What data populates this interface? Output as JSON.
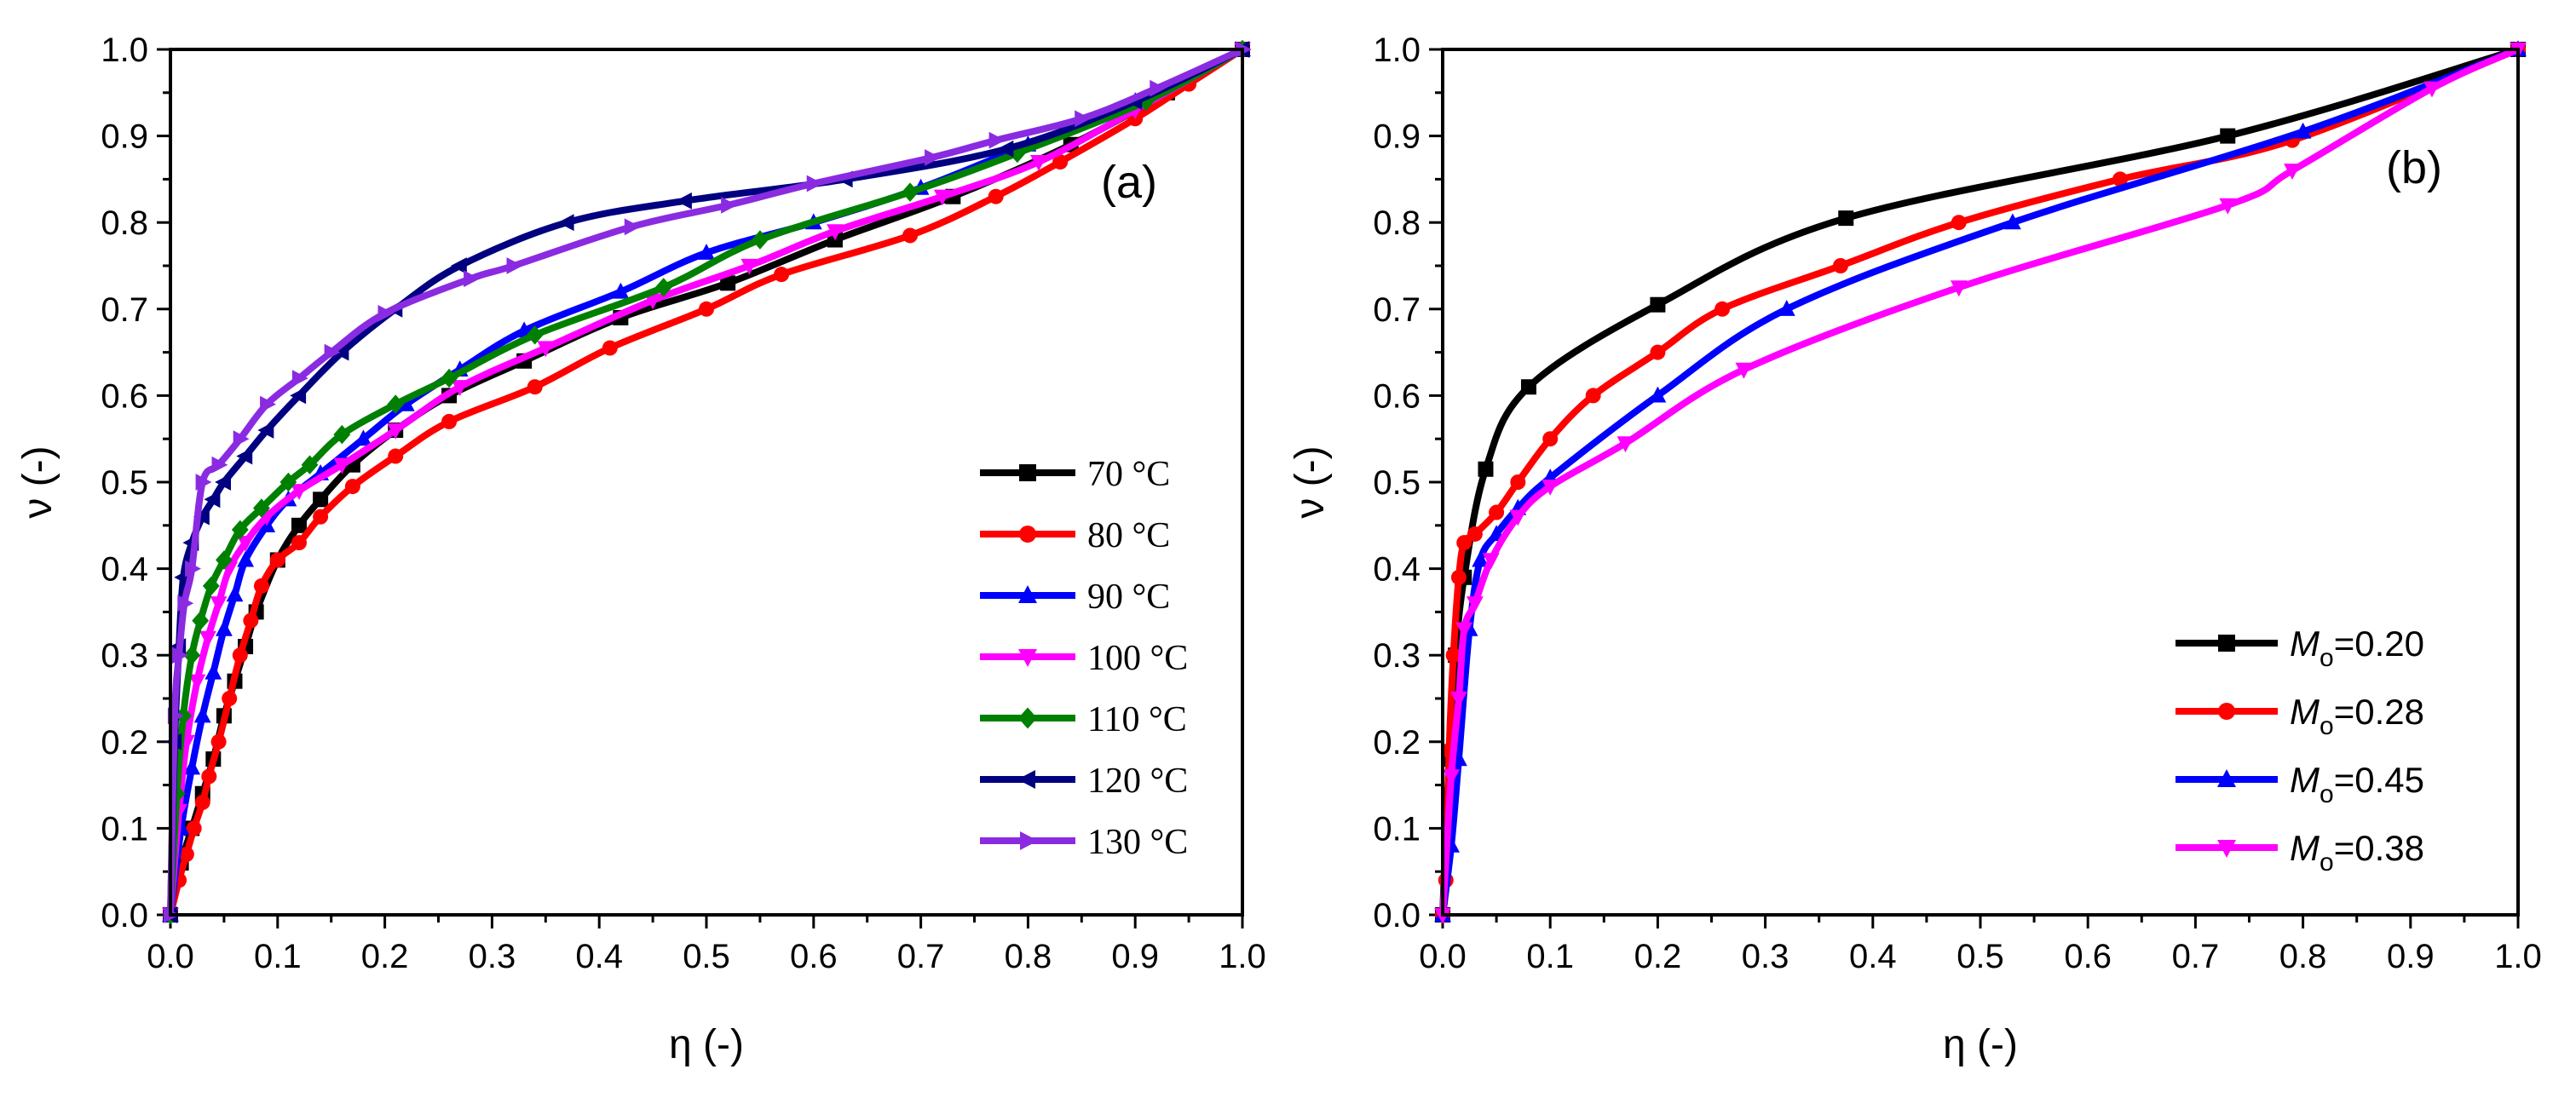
{
  "chart_data": [
    {
      "type": "line",
      "panel_label": "(a)",
      "xlabel": "η (-)",
      "ylabel": "ν (-)",
      "xlim": [
        0,
        1
      ],
      "ylim": [
        0,
        1
      ],
      "xticks": [
        "0.0",
        "0.1",
        "0.2",
        "0.3",
        "0.4",
        "0.5",
        "0.6",
        "0.7",
        "0.8",
        "0.9",
        "1.0"
      ],
      "yticks": [
        "0.0",
        "0.1",
        "0.2",
        "0.3",
        "0.4",
        "0.5",
        "0.6",
        "0.7",
        "0.8",
        "0.9",
        "1.0"
      ],
      "legend_position": "lower-right",
      "series": [
        {
          "name": "70 °C",
          "color": "#000000",
          "marker": "square",
          "x": [
            0,
            0.01,
            0.02,
            0.03,
            0.04,
            0.05,
            0.06,
            0.07,
            0.08,
            0.1,
            0.12,
            0.14,
            0.17,
            0.21,
            0.26,
            0.33,
            0.42,
            0.52,
            0.62,
            0.73,
            0.84,
            0.93,
            1.0
          ],
          "y": [
            0,
            0.06,
            0.1,
            0.14,
            0.18,
            0.23,
            0.27,
            0.31,
            0.35,
            0.41,
            0.45,
            0.48,
            0.52,
            0.56,
            0.6,
            0.64,
            0.69,
            0.73,
            0.78,
            0.83,
            0.89,
            0.95,
            1.0
          ]
        },
        {
          "name": "80 °C",
          "color": "#ff0000",
          "marker": "circle",
          "x": [
            0,
            0.008,
            0.015,
            0.022,
            0.03,
            0.036,
            0.045,
            0.055,
            0.065,
            0.075,
            0.085,
            0.1,
            0.12,
            0.14,
            0.17,
            0.21,
            0.26,
            0.34,
            0.41,
            0.5,
            0.57,
            0.69,
            0.77,
            0.83,
            0.9,
            0.95,
            1.0
          ],
          "y": [
            0,
            0.04,
            0.07,
            0.1,
            0.13,
            0.16,
            0.2,
            0.25,
            0.3,
            0.34,
            0.38,
            0.41,
            0.43,
            0.46,
            0.495,
            0.53,
            0.57,
            0.61,
            0.655,
            0.7,
            0.74,
            0.785,
            0.83,
            0.87,
            0.92,
            0.96,
            1.0
          ]
        },
        {
          "name": "90 °C",
          "color": "#0000ff",
          "marker": "triangle-up",
          "x": [
            0,
            0.01,
            0.02,
            0.03,
            0.04,
            0.05,
            0.06,
            0.07,
            0.09,
            0.11,
            0.14,
            0.18,
            0.22,
            0.27,
            0.33,
            0.42,
            0.5,
            0.6,
            0.7,
            0.8,
            0.9,
            1.0
          ],
          "y": [
            0,
            0.1,
            0.17,
            0.23,
            0.28,
            0.33,
            0.37,
            0.41,
            0.45,
            0.48,
            0.51,
            0.55,
            0.59,
            0.63,
            0.675,
            0.72,
            0.765,
            0.8,
            0.84,
            0.89,
            0.94,
            1.0
          ]
        },
        {
          "name": "100 °C",
          "color": "#ff00ff",
          "marker": "triangle-down",
          "x": [
            0,
            0.008,
            0.015,
            0.025,
            0.035,
            0.045,
            0.055,
            0.07,
            0.09,
            0.12,
            0.16,
            0.21,
            0.27,
            0.35,
            0.45,
            0.54,
            0.62,
            0.72,
            0.81,
            0.9,
            1.0
          ],
          "y": [
            0,
            0.12,
            0.2,
            0.27,
            0.32,
            0.36,
            0.4,
            0.43,
            0.46,
            0.49,
            0.52,
            0.56,
            0.61,
            0.655,
            0.71,
            0.75,
            0.79,
            0.83,
            0.87,
            0.93,
            1.0
          ]
        },
        {
          "name": "110 °C",
          "color": "#008000",
          "marker": "diamond",
          "x": [
            0,
            0.006,
            0.012,
            0.02,
            0.028,
            0.038,
            0.05,
            0.065,
            0.085,
            0.11,
            0.13,
            0.16,
            0.21,
            0.26,
            0.34,
            0.46,
            0.55,
            0.69,
            0.79,
            0.91,
            1.0
          ],
          "y": [
            0,
            0.14,
            0.23,
            0.3,
            0.34,
            0.38,
            0.41,
            0.445,
            0.47,
            0.5,
            0.52,
            0.555,
            0.59,
            0.62,
            0.67,
            0.725,
            0.78,
            0.835,
            0.88,
            0.94,
            1.0
          ]
        },
        {
          "name": "120 °C",
          "color": "#000080",
          "marker": "triangle-left",
          "x": [
            0,
            0.004,
            0.008,
            0.012,
            0.02,
            0.03,
            0.04,
            0.05,
            0.07,
            0.09,
            0.12,
            0.16,
            0.21,
            0.27,
            0.37,
            0.48,
            0.63,
            0.78,
            0.9,
            1.0
          ],
          "y": [
            0,
            0.2,
            0.31,
            0.39,
            0.43,
            0.46,
            0.48,
            0.5,
            0.53,
            0.56,
            0.6,
            0.65,
            0.7,
            0.75,
            0.8,
            0.825,
            0.85,
            0.885,
            0.94,
            1.0
          ]
        },
        {
          "name": "130 °C",
          "color": "#8a2be2",
          "marker": "triangle-right",
          "x": [
            0,
            0.004,
            0.008,
            0.013,
            0.02,
            0.03,
            0.045,
            0.065,
            0.09,
            0.12,
            0.15,
            0.2,
            0.28,
            0.32,
            0.43,
            0.52,
            0.6,
            0.71,
            0.77,
            0.85,
            0.92,
            1.0
          ],
          "y": [
            0,
            0.23,
            0.3,
            0.36,
            0.4,
            0.5,
            0.52,
            0.55,
            0.59,
            0.62,
            0.65,
            0.695,
            0.735,
            0.75,
            0.795,
            0.82,
            0.845,
            0.875,
            0.895,
            0.92,
            0.955,
            1.0
          ]
        }
      ]
    },
    {
      "type": "line",
      "panel_label": "(b)",
      "xlabel": "η (-)",
      "ylabel": "ν (-)",
      "xlim": [
        0,
        1
      ],
      "ylim": [
        0,
        1
      ],
      "xticks": [
        "0.0",
        "0.1",
        "0.2",
        "0.3",
        "0.4",
        "0.5",
        "0.6",
        "0.7",
        "0.8",
        "0.9",
        "1.0"
      ],
      "yticks": [
        "0.0",
        "0.1",
        "0.2",
        "0.3",
        "0.4",
        "0.5",
        "0.6",
        "0.7",
        "0.8",
        "0.9",
        "1.0"
      ],
      "legend_position": "lower-right",
      "series": [
        {
          "name_prefix": "M",
          "name_sub": "o",
          "name_suffix": "=0.20",
          "color": "#000000",
          "marker": "square",
          "x": [
            0,
            0.006,
            0.012,
            0.02,
            0.04,
            0.08,
            0.2,
            0.375,
            0.73,
            1.0
          ],
          "y": [
            0,
            0.18,
            0.3,
            0.39,
            0.515,
            0.61,
            0.705,
            0.805,
            0.9,
            1.0
          ]
        },
        {
          "name_prefix": "M",
          "name_sub": "o",
          "name_suffix": "=0.28",
          "color": "#ff0000",
          "marker": "circle",
          "x": [
            0,
            0.003,
            0.006,
            0.01,
            0.015,
            0.02,
            0.03,
            0.05,
            0.07,
            0.1,
            0.14,
            0.2,
            0.26,
            0.37,
            0.48,
            0.63,
            0.79,
            1.0
          ],
          "y": [
            0,
            0.04,
            0.19,
            0.3,
            0.39,
            0.43,
            0.44,
            0.465,
            0.5,
            0.55,
            0.6,
            0.65,
            0.7,
            0.75,
            0.8,
            0.85,
            0.895,
            1.0
          ]
        },
        {
          "name_prefix": "M",
          "name_sub": "o",
          "name_suffix": "=0.45",
          "color": "#0000ff",
          "marker": "triangle-up",
          "x": [
            0,
            0.008,
            0.015,
            0.025,
            0.035,
            0.05,
            0.07,
            0.1,
            0.2,
            0.32,
            0.53,
            0.8,
            1.0
          ],
          "y": [
            0,
            0.08,
            0.18,
            0.33,
            0.41,
            0.44,
            0.47,
            0.505,
            0.6,
            0.7,
            0.8,
            0.905,
            1.0
          ]
        },
        {
          "name_prefix": "M",
          "name_sub": "o",
          "name_suffix": "=0.38",
          "color": "#ff00ff",
          "marker": "triangle-down",
          "x": [
            0,
            0.008,
            0.015,
            0.02,
            0.03,
            0.045,
            0.07,
            0.1,
            0.17,
            0.28,
            0.48,
            0.73,
            0.79,
            0.92,
            1.0
          ],
          "y": [
            0,
            0.16,
            0.25,
            0.33,
            0.36,
            0.41,
            0.46,
            0.495,
            0.545,
            0.63,
            0.725,
            0.82,
            0.86,
            0.955,
            1.0
          ]
        }
      ]
    }
  ]
}
